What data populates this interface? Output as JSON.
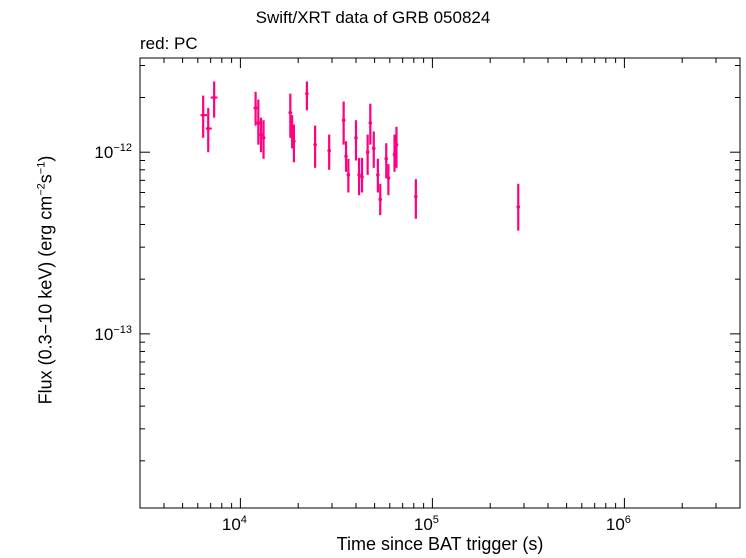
{
  "chart_data": {
    "type": "scatter",
    "title": "Swift/XRT data of GRB 050824",
    "subtitle": "red: PC",
    "xlabel": "Time since BAT trigger (s)",
    "ylabel": {
      "prefix": "Flux (0.3−10 keV) (erg cm",
      "exp1": "−2",
      "mid": "s",
      "exp2": "−1",
      "suffix": ")"
    },
    "xscale": "log",
    "yscale": "log",
    "xlim": [
      3000,
      4000000
    ],
    "ylim": [
      1.1e-14,
      3.3e-12
    ],
    "x_tick_labels": [
      {
        "base": "10",
        "exp": "4",
        "value": 10000
      },
      {
        "base": "10",
        "exp": "5",
        "value": 100000
      },
      {
        "base": "10",
        "exp": "6",
        "value": 1000000
      }
    ],
    "y_tick_labels": [
      {
        "base": "10",
        "exp": "−12",
        "value": 1e-12
      },
      {
        "base": "10",
        "exp": "−13",
        "value": 1e-13
      }
    ],
    "series": [
      {
        "color": "#ff0080",
        "points": [
          {
            "x": 6400,
            "y": 1.6e-12,
            "ylo": 1.2e-12,
            "yhi": 2.05e-12,
            "xlo": 6200,
            "xhi": 6700
          },
          {
            "x": 6800,
            "y": 1.35e-12,
            "ylo": 1e-12,
            "yhi": 1.75e-12,
            "xlo": 6600,
            "xhi": 7100
          },
          {
            "x": 7300,
            "y": 2e-12,
            "ylo": 1.55e-12,
            "yhi": 2.45e-12,
            "xlo": 7000,
            "xhi": 7600
          },
          {
            "x": 12000,
            "y": 1.75e-12,
            "ylo": 1.4e-12,
            "yhi": 2.15e-12,
            "xlo": 11700,
            "xhi": 12300
          },
          {
            "x": 12400,
            "y": 1.45e-12,
            "ylo": 1.1e-12,
            "yhi": 1.95e-12,
            "xlo": 12200,
            "xhi": 12700
          },
          {
            "x": 12800,
            "y": 1.25e-12,
            "ylo": 1e-12,
            "yhi": 1.55e-12,
            "xlo": 12600,
            "xhi": 13000
          },
          {
            "x": 13200,
            "y": 1.2e-12,
            "ylo": 9.2e-13,
            "yhi": 1.5e-12,
            "xlo": 13000,
            "xhi": 13500
          },
          {
            "x": 18200,
            "y": 1.65e-12,
            "ylo": 1.2e-12,
            "yhi": 2.1e-12,
            "xlo": 17800,
            "xhi": 18600
          },
          {
            "x": 18600,
            "y": 1.3e-12,
            "ylo": 1.05e-12,
            "yhi": 1.6e-12,
            "xlo": 18300,
            "xhi": 18900
          },
          {
            "x": 19000,
            "y": 1.15e-12,
            "ylo": 8.8e-13,
            "yhi": 1.42e-12,
            "xlo": 18800,
            "xhi": 19300
          },
          {
            "x": 22200,
            "y": 2.1e-12,
            "ylo": 1.7e-12,
            "yhi": 2.45e-12,
            "xlo": 21900,
            "xhi": 22600
          },
          {
            "x": 24500,
            "y": 1.1e-12,
            "ylo": 8.2e-13,
            "yhi": 1.4e-12,
            "xlo": 24100,
            "xhi": 24900
          },
          {
            "x": 29000,
            "y": 1.02e-12,
            "ylo": 8e-13,
            "yhi": 1.25e-12,
            "xlo": 28500,
            "xhi": 29500
          },
          {
            "x": 34500,
            "y": 1.5e-12,
            "ylo": 1.1e-12,
            "yhi": 1.9e-12,
            "xlo": 34000,
            "xhi": 35000
          },
          {
            "x": 35500,
            "y": 9.5e-13,
            "ylo": 7.8e-13,
            "yhi": 1.15e-12,
            "xlo": 35000,
            "xhi": 36000
          },
          {
            "x": 36500,
            "y": 7.5e-13,
            "ylo": 6e-13,
            "yhi": 9.2e-13,
            "xlo": 36000,
            "xhi": 37000
          },
          {
            "x": 40000,
            "y": 1.2e-12,
            "ylo": 9e-13,
            "yhi": 1.5e-12,
            "xlo": 39400,
            "xhi": 40600
          },
          {
            "x": 41500,
            "y": 7.5e-13,
            "ylo": 5.8e-13,
            "yhi": 9.3e-13,
            "xlo": 41000,
            "xhi": 42000
          },
          {
            "x": 43000,
            "y": 7.3e-13,
            "ylo": 6e-13,
            "yhi": 9.3e-13,
            "xlo": 42500,
            "xhi": 43500
          },
          {
            "x": 46000,
            "y": 1e-12,
            "ylo": 7.5e-13,
            "yhi": 1.25e-12,
            "xlo": 45500,
            "xhi": 46500
          },
          {
            "x": 47500,
            "y": 1.45e-12,
            "ylo": 1.1e-12,
            "yhi": 1.85e-12,
            "xlo": 47000,
            "xhi": 48000
          },
          {
            "x": 49500,
            "y": 1.05e-12,
            "ylo": 8.2e-13,
            "yhi": 1.3e-12,
            "xlo": 49000,
            "xhi": 50000
          },
          {
            "x": 52000,
            "y": 7.5e-13,
            "ylo": 6e-13,
            "yhi": 9.2e-13,
            "xlo": 51500,
            "xhi": 52500
          },
          {
            "x": 53500,
            "y": 5.5e-13,
            "ylo": 4.5e-13,
            "yhi": 6.7e-13,
            "xlo": 53000,
            "xhi": 54000
          },
          {
            "x": 57500,
            "y": 9.2e-13,
            "ylo": 7.2e-13,
            "yhi": 1.12e-12,
            "xlo": 57000,
            "xhi": 58000
          },
          {
            "x": 59000,
            "y": 7.2e-13,
            "ylo": 5.8e-13,
            "yhi": 8.6e-13,
            "xlo": 58500,
            "xhi": 59500
          },
          {
            "x": 63500,
            "y": 9.7e-13,
            "ylo": 7.8e-13,
            "yhi": 1.25e-12,
            "xlo": 62800,
            "xhi": 64200
          },
          {
            "x": 65000,
            "y": 1.1e-12,
            "ylo": 8.2e-13,
            "yhi": 1.38e-12,
            "xlo": 64300,
            "xhi": 65700
          },
          {
            "x": 82000,
            "y": 5.7e-13,
            "ylo": 4.3e-13,
            "yhi": 7.1e-13,
            "xlo": 81000,
            "xhi": 83000
          },
          {
            "x": 280000,
            "y": 5e-13,
            "ylo": 3.7e-13,
            "yhi": 6.7e-13,
            "xlo": 279000,
            "xhi": 281000
          }
        ]
      }
    ],
    "grid": false,
    "legend": "none"
  }
}
